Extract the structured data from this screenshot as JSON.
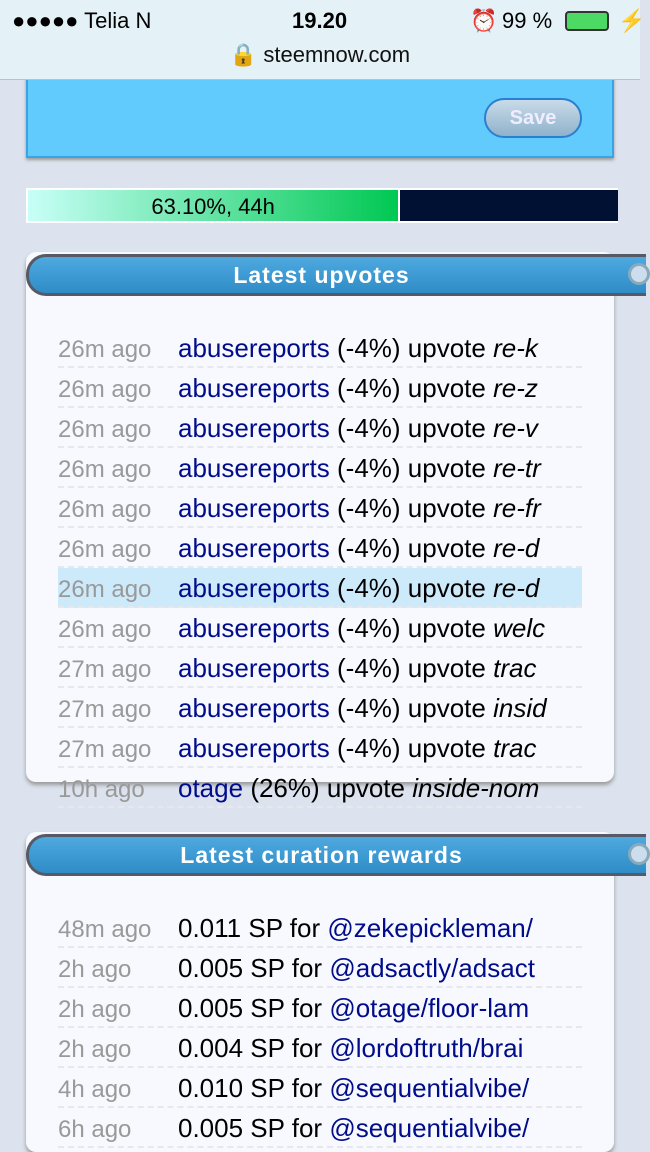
{
  "status": {
    "carrier": "●●●●● Telia N",
    "time": "19.20",
    "battery": "99 %",
    "url": "steemnow.com"
  },
  "settings": {
    "save_label": "Save"
  },
  "voting_power": {
    "label": "63.10%, 44h",
    "percent": 63.1
  },
  "upvotes": {
    "title": "Latest upvotes",
    "rows": [
      {
        "time": "26m ago",
        "user": "abusereports",
        "pct": "(-4%)",
        "action": "upvote",
        "post": "re-k"
      },
      {
        "time": "26m ago",
        "user": "abusereports",
        "pct": "(-4%)",
        "action": "upvote",
        "post": "re-z"
      },
      {
        "time": "26m ago",
        "user": "abusereports",
        "pct": "(-4%)",
        "action": "upvote",
        "post": "re-v"
      },
      {
        "time": "26m ago",
        "user": "abusereports",
        "pct": "(-4%)",
        "action": "upvote",
        "post": "re-tr"
      },
      {
        "time": "26m ago",
        "user": "abusereports",
        "pct": "(-4%)",
        "action": "upvote",
        "post": "re-fr"
      },
      {
        "time": "26m ago",
        "user": "abusereports",
        "pct": "(-4%)",
        "action": "upvote",
        "post": "re-d"
      },
      {
        "time": "26m ago",
        "user": "abusereports",
        "pct": "(-4%)",
        "action": "upvote",
        "post": "re-d"
      },
      {
        "time": "26m ago",
        "user": "abusereports",
        "pct": "(-4%)",
        "action": "upvote",
        "post": "welc"
      },
      {
        "time": "27m ago",
        "user": "abusereports",
        "pct": "(-4%)",
        "action": "upvote",
        "post": "trac"
      },
      {
        "time": "27m ago",
        "user": "abusereports",
        "pct": "(-4%)",
        "action": "upvote",
        "post": "insid"
      },
      {
        "time": "27m ago",
        "user": "abusereports",
        "pct": "(-4%)",
        "action": "upvote",
        "post": "trac"
      },
      {
        "time": "10h ago",
        "user": "otage",
        "pct": "(26%)",
        "action": "upvote",
        "post": "inside-nom"
      }
    ]
  },
  "curation": {
    "title": "Latest curation rewards",
    "rows": [
      {
        "time": "48m ago",
        "amount": "0.011 SP for",
        "post": "@zekepickleman/"
      },
      {
        "time": "2h ago",
        "amount": "0.005 SP for",
        "post": "@adsactly/adsact"
      },
      {
        "time": "2h ago",
        "amount": "0.005 SP for",
        "post": "@otage/floor-lam"
      },
      {
        "time": "2h ago",
        "amount": "0.004 SP for",
        "post": "@lordoftruth/brai"
      },
      {
        "time": "4h ago",
        "amount": "0.010 SP for",
        "post": "@sequentialvibe/"
      },
      {
        "time": "6h ago",
        "amount": "0.005 SP for",
        "post": "@sequentialvibe/"
      }
    ]
  }
}
